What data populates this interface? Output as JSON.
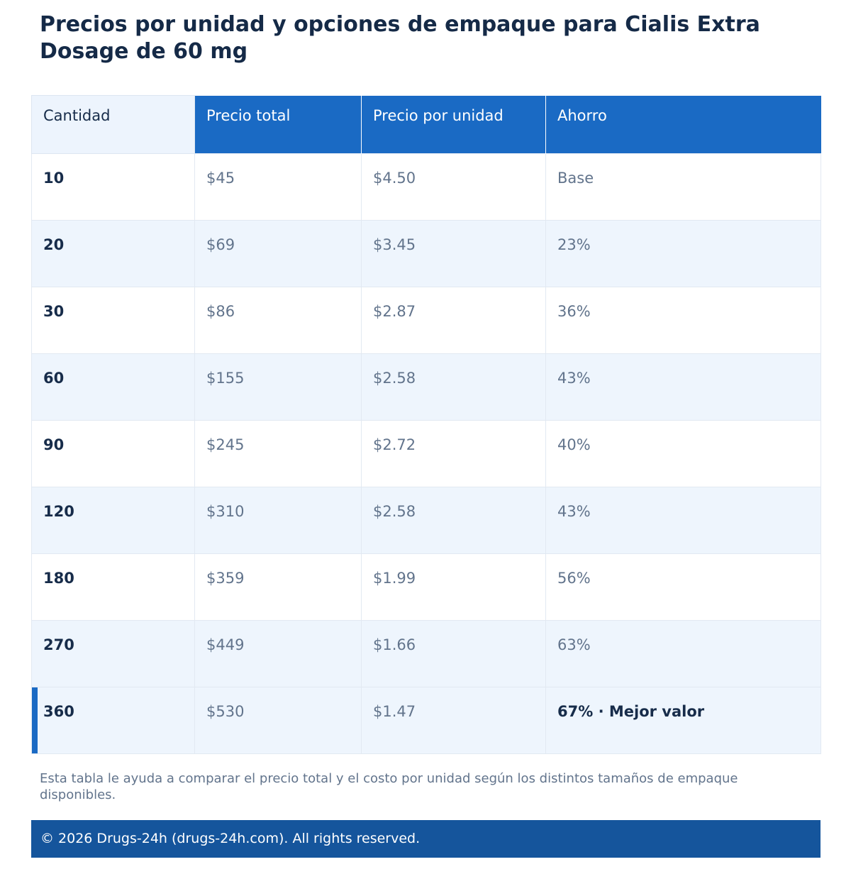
{
  "page": {
    "title": "Precios por unidad y opciones de empaque para Cialis Extra Dosage de 60 mg",
    "note": "Esta tabla le ayuda a comparar el precio total y el costo por unidad según los distintos tamaños de empaque disponibles.",
    "footer": "© 2026 Drugs-24h (drugs-24h.com). All rights reserved."
  },
  "table": {
    "headers": [
      "Cantidad",
      "Precio total",
      "Precio por unidad",
      "Ahorro"
    ],
    "rows": [
      {
        "qty": "10",
        "total": "$45",
        "unit": "$4.50",
        "savings": "Base"
      },
      {
        "qty": "20",
        "total": "$69",
        "unit": "$3.45",
        "savings": "23%"
      },
      {
        "qty": "30",
        "total": "$86",
        "unit": "$2.87",
        "savings": "36%"
      },
      {
        "qty": "60",
        "total": "$155",
        "unit": "$2.58",
        "savings": "43%"
      },
      {
        "qty": "90",
        "total": "$245",
        "unit": "$2.72",
        "savings": "40%"
      },
      {
        "qty": "120",
        "total": "$310",
        "unit": "$2.58",
        "savings": "43%"
      },
      {
        "qty": "180",
        "total": "$359",
        "unit": "$1.99",
        "savings": "56%"
      },
      {
        "qty": "270",
        "total": "$449",
        "unit": "$1.66",
        "savings": "63%"
      },
      {
        "qty": "360",
        "total": "$530",
        "unit": "$1.47",
        "savings": "67% · Mejor valor"
      }
    ]
  },
  "colors": {
    "header_bg": "#1a6ac4",
    "alt_row_bg": "#eef5fd",
    "footer_bg": "#15559c",
    "title_text": "#152a47",
    "muted_text": "#62748c"
  }
}
